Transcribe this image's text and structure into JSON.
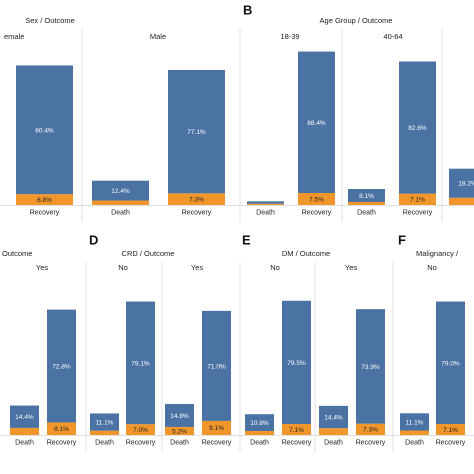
{
  "colors": {
    "death": "#f0962a",
    "recovery": "#4a72a3",
    "divider": "#d9d9d9"
  },
  "chart_data": [
    {
      "type": "bar",
      "panel": "",
      "title": "Sex  /  Outcome",
      "groups": [
        {
          "name": "emale",
          "bars": [
            {
              "category": "Recovery",
              "death_pct": 6.8,
              "recovery_pct": 80.4,
              "death_label": "6.8%",
              "recovery_label": "80.4%"
            }
          ]
        },
        {
          "name": "Male",
          "bars": [
            {
              "category": "Death",
              "death_pct": 2.8,
              "recovery_pct": 12.4,
              "death_label": "",
              "recovery_label": "12.4%"
            },
            {
              "category": "Recovery",
              "death_pct": 7.3,
              "recovery_pct": 77.1,
              "death_label": "7.3%",
              "recovery_label": "77.1%"
            }
          ]
        }
      ]
    },
    {
      "type": "bar",
      "panel": "B",
      "title": "Age Group  /  Outcome",
      "groups": [
        {
          "name": "18-39",
          "bars": [
            {
              "category": "Death",
              "death_pct": 0.8,
              "recovery_pct": 1.5,
              "death_label": "",
              "recovery_label": ""
            },
            {
              "category": "Recovery",
              "death_pct": 7.5,
              "recovery_pct": 88.4,
              "death_label": "7.5%",
              "recovery_label": "88.4%"
            }
          ]
        },
        {
          "name": "40-64",
          "bars": [
            {
              "category": "Death",
              "death_pct": 1.9,
              "recovery_pct": 8.1,
              "death_label": "",
              "recovery_label": "8.1%"
            },
            {
              "category": "Recovery",
              "death_pct": 7.1,
              "recovery_pct": 82.6,
              "death_label": "7.1%",
              "recovery_label": "82.6%"
            }
          ]
        },
        {
          "name": "",
          "bars": [
            {
              "category": "",
              "death_pct": 4.5,
              "recovery_pct": 18.2,
              "death_label": "",
              "recovery_label": "18.2%"
            }
          ]
        }
      ]
    },
    {
      "type": "bar",
      "panel": "",
      "title": "Outcome",
      "groups": [
        {
          "name": "Yes",
          "bars": [
            {
              "category": "Death",
              "death_pct": 4.6,
              "recovery_pct": 14.4,
              "death_label": "",
              "recovery_label": "14.4%"
            },
            {
              "category": "Recovery",
              "death_pct": 8.1,
              "recovery_pct": 72.8,
              "death_label": "8.1%",
              "recovery_label": "72.8%"
            }
          ]
        }
      ]
    },
    {
      "type": "bar",
      "panel": "D",
      "title": "CRD  /  Outcome",
      "groups": [
        {
          "name": "No",
          "bars": [
            {
              "category": "Death",
              "death_pct": 2.8,
              "recovery_pct": 11.1,
              "death_label": "",
              "recovery_label": "11.1%"
            },
            {
              "category": "Recovery",
              "death_pct": 7.0,
              "recovery_pct": 79.1,
              "death_label": "7.0%",
              "recovery_label": "79.1%"
            }
          ]
        },
        {
          "name": "Yes",
          "bars": [
            {
              "category": "Death",
              "death_pct": 5.2,
              "recovery_pct": 14.8,
              "death_label": "5.2%",
              "recovery_label": "14.8%"
            },
            {
              "category": "Recovery",
              "death_pct": 9.1,
              "recovery_pct": 71.0,
              "death_label": "9.1%",
              "recovery_label": "71.0%"
            }
          ]
        }
      ]
    },
    {
      "type": "bar",
      "panel": "E",
      "title": "DM  /  Outcome",
      "groups": [
        {
          "name": "No",
          "bars": [
            {
              "category": "Death",
              "death_pct": 2.6,
              "recovery_pct": 10.8,
              "death_label": "",
              "recovery_label": "10.8%"
            },
            {
              "category": "Recovery",
              "death_pct": 7.1,
              "recovery_pct": 79.5,
              "death_label": "7.1%",
              "recovery_label": "79.5%"
            }
          ]
        },
        {
          "name": "Yes",
          "bars": [
            {
              "category": "Death",
              "death_pct": 4.4,
              "recovery_pct": 14.4,
              "death_label": "",
              "recovery_label": "14.4%"
            },
            {
              "category": "Recovery",
              "death_pct": 7.3,
              "recovery_pct": 73.9,
              "death_label": "7.3%",
              "recovery_label": "73.9%"
            }
          ]
        }
      ]
    },
    {
      "type": "bar",
      "panel": "F",
      "title": "Malignancy  /",
      "groups": [
        {
          "name": "No",
          "bars": [
            {
              "category": "Death",
              "death_pct": 2.9,
              "recovery_pct": 11.1,
              "death_label": "",
              "recovery_label": "11.1%"
            },
            {
              "category": "Recovery",
              "death_pct": 7.1,
              "recovery_pct": 79.0,
              "death_label": "7.1%",
              "recovery_label": "79.0%"
            }
          ]
        }
      ]
    }
  ]
}
